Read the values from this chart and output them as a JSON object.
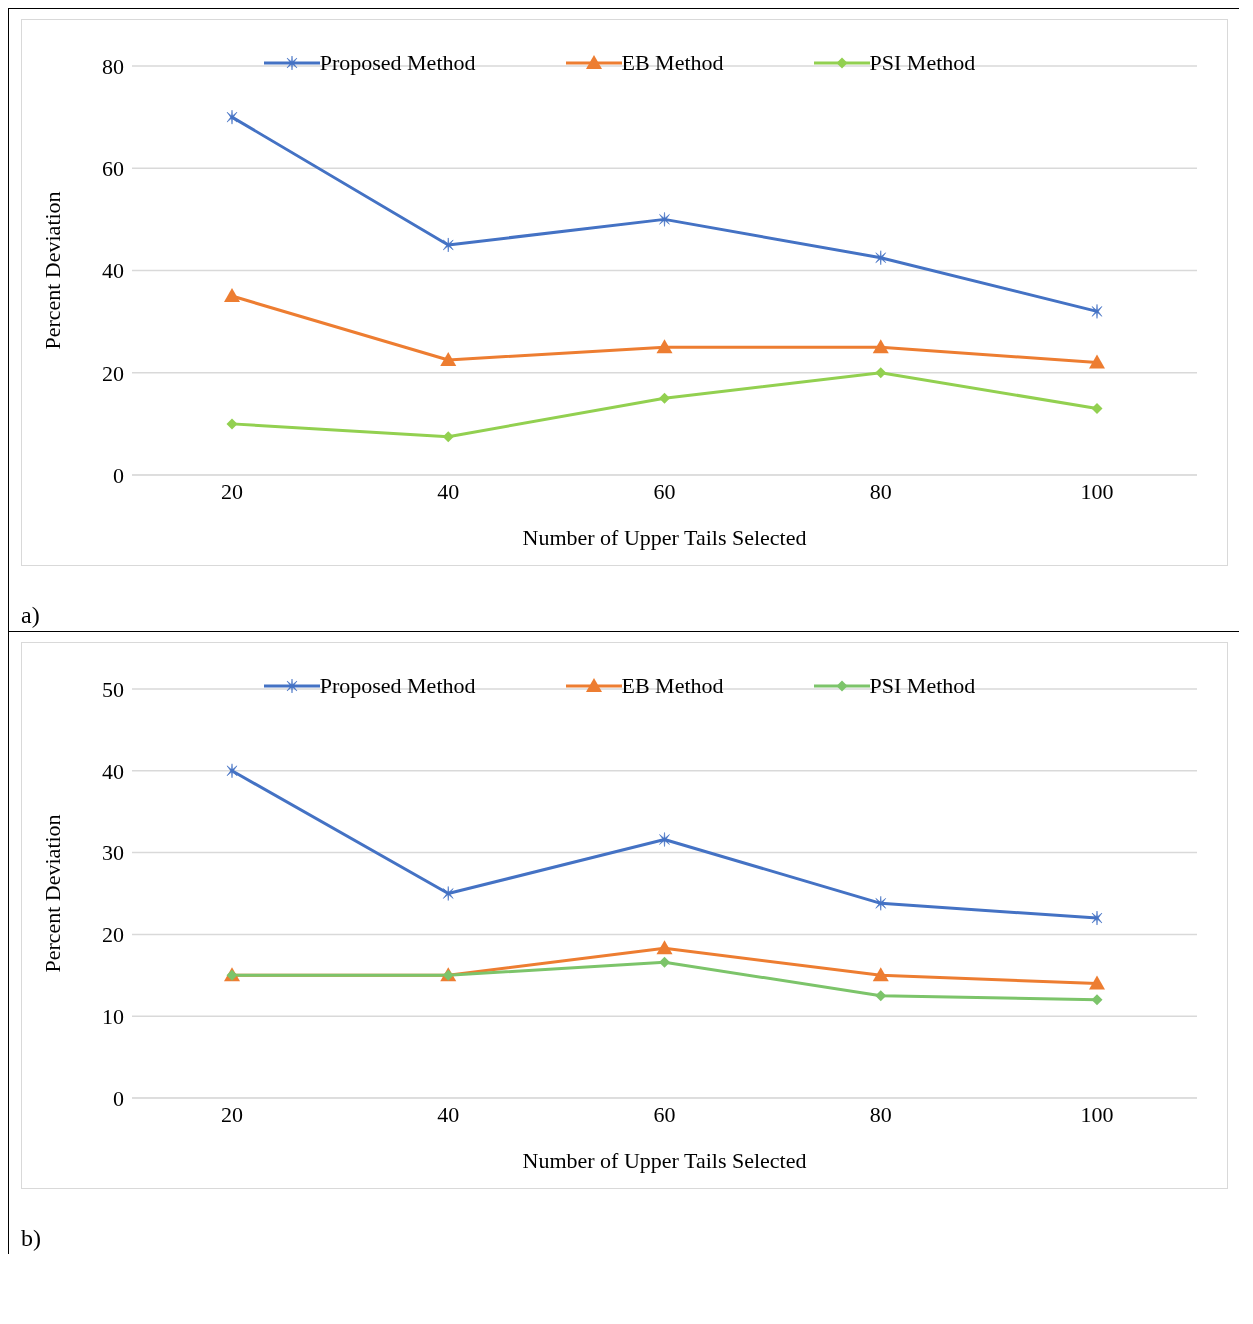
{
  "chart_data": [
    {
      "type": "line",
      "xlabel": "Number of Upper Tails Selected",
      "ylabel": "Percent Deviation",
      "categories": [
        "20",
        "40",
        "60",
        "80",
        "100"
      ],
      "ylim": [
        0,
        80
      ],
      "yticks": [
        0,
        20,
        40,
        60,
        80
      ],
      "grid": "y",
      "legend": "top",
      "annotations": [
        "a)"
      ],
      "series": [
        {
          "name": "Proposed Method",
          "color": "#4472c4",
          "marker": "cross",
          "values": [
            70,
            45,
            50,
            42.5,
            32
          ]
        },
        {
          "name": "EB Method",
          "color": "#ed7d31",
          "marker": "triangle",
          "values": [
            35,
            22.5,
            25,
            25,
            22
          ]
        },
        {
          "name": "PSI Method",
          "color": "#92d050",
          "marker": "diamond",
          "values": [
            10,
            7.5,
            15,
            20,
            13
          ]
        }
      ]
    },
    {
      "type": "line",
      "xlabel": "Number of Upper Tails Selected",
      "ylabel": "Percent Deviation",
      "categories": [
        "20",
        "40",
        "60",
        "80",
        "100"
      ],
      "ylim": [
        0,
        50
      ],
      "yticks": [
        0,
        10,
        20,
        30,
        40,
        50
      ],
      "grid": "y",
      "legend": "top",
      "annotations": [
        "b)"
      ],
      "series": [
        {
          "name": "Proposed Method",
          "color": "#4472c4",
          "marker": "cross",
          "values": [
            40,
            25,
            31.6,
            23.8,
            22
          ]
        },
        {
          "name": "EB Method",
          "color": "#ed7d31",
          "marker": "triangle",
          "values": [
            15,
            15,
            18.3,
            15,
            14
          ]
        },
        {
          "name": "PSI Method",
          "color": "#7cc46a",
          "marker": "diamond",
          "values": [
            15,
            15,
            16.6,
            12.5,
            12
          ]
        }
      ]
    }
  ]
}
